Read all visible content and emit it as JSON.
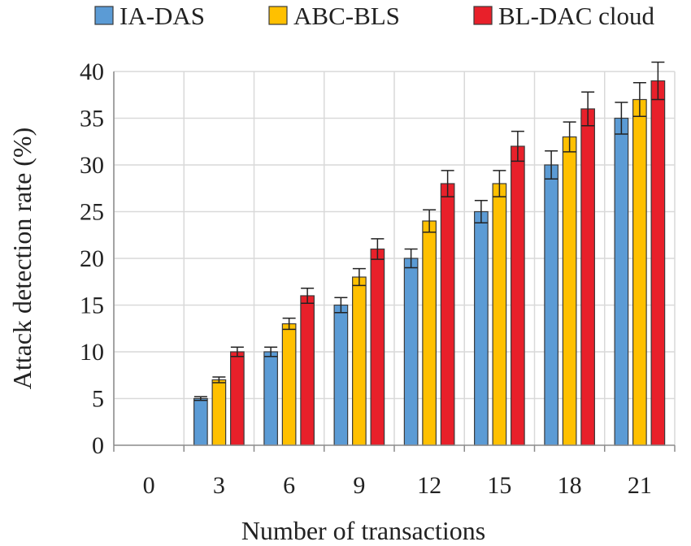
{
  "chart_data": {
    "type": "bar",
    "title": "",
    "xlabel": "Number of transactions",
    "ylabel": "Attack detection rate (%)",
    "ylim": [
      0,
      40
    ],
    "yticks": [
      0,
      5,
      10,
      15,
      20,
      25,
      30,
      35,
      40
    ],
    "categories": [
      "0",
      "3",
      "6",
      "9",
      "12",
      "15",
      "18",
      "21"
    ],
    "grid": true,
    "legend_position": "top",
    "series": [
      {
        "name": "IA-DAS",
        "color": "#5b9bd5",
        "values": [
          0,
          5,
          10,
          15,
          20,
          25,
          30,
          35
        ],
        "errors": [
          0,
          0.2,
          0.5,
          0.8,
          1.0,
          1.2,
          1.5,
          1.7
        ]
      },
      {
        "name": "ABC-BLS",
        "color": "#ffc000",
        "values": [
          0,
          7,
          13,
          18,
          24,
          28,
          33,
          37
        ],
        "errors": [
          0,
          0.3,
          0.6,
          0.9,
          1.2,
          1.4,
          1.6,
          1.8
        ]
      },
      {
        "name": "BL-DAC cloud",
        "color": "#e8202a",
        "values": [
          0,
          10,
          16,
          21,
          28,
          32,
          36,
          39
        ],
        "errors": [
          0,
          0.5,
          0.8,
          1.1,
          1.4,
          1.6,
          1.8,
          2.0
        ]
      }
    ]
  }
}
